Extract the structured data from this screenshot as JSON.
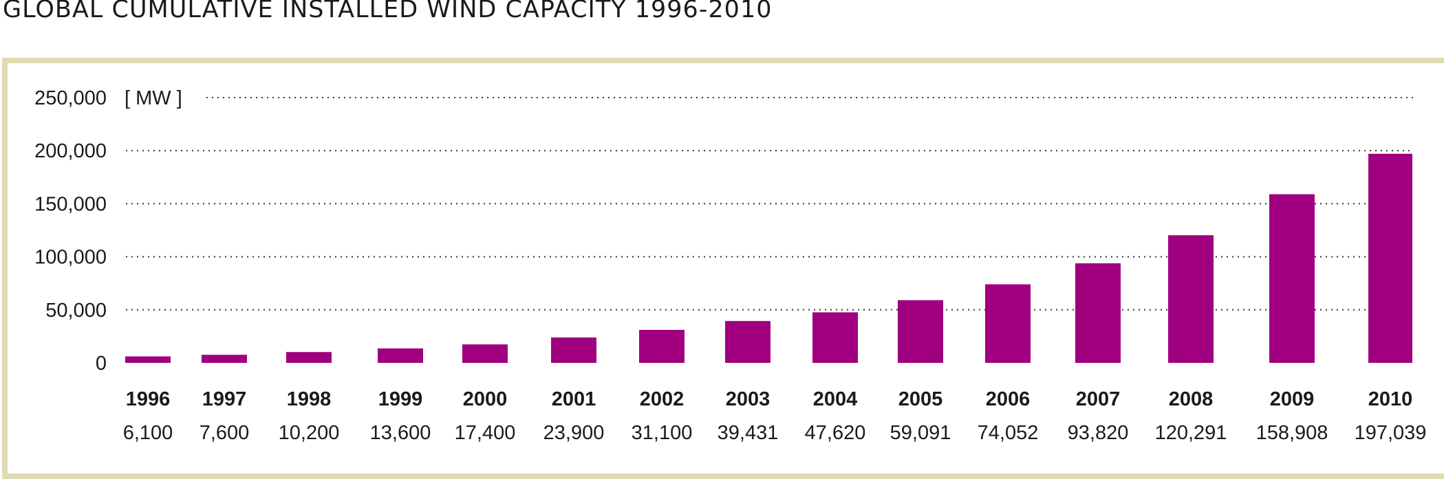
{
  "title": "GLOBAL CUMULATIVE INSTALLED WIND CAPACITY 1996-2010",
  "colors": {
    "bar": "#a0007f",
    "frame": "#e0dbb3",
    "grid": "#333333"
  },
  "chart_data": {
    "type": "bar",
    "title": "GLOBAL CUMULATIVE INSTALLED WIND CAPACITY 1996-2010",
    "unit": "[ MW ]",
    "categories": [
      "1996",
      "1997",
      "1998",
      "1999",
      "2000",
      "2001",
      "2002",
      "2003",
      "2004",
      "2005",
      "2006",
      "2007",
      "2008",
      "2009",
      "2010"
    ],
    "values": [
      6100,
      7600,
      10200,
      13600,
      17400,
      23900,
      31100,
      39431,
      47620,
      59091,
      74052,
      93820,
      120291,
      158908,
      197039
    ],
    "value_labels": [
      "6,100",
      "7,600",
      "10,200",
      "13,600",
      "17,400",
      "23,900",
      "31,100",
      "39,431",
      "47,620",
      "59,091",
      "74,052",
      "93,820",
      "120,291",
      "158,908",
      "197,039"
    ],
    "y_ticks": [
      0,
      50000,
      100000,
      150000,
      200000,
      250000
    ],
    "y_tick_labels": [
      "0",
      "50,000",
      "100,000",
      "150,000",
      "200,000",
      "250,000"
    ],
    "ylim": [
      0,
      250000
    ],
    "grid": true,
    "grid_style": "dotted"
  }
}
